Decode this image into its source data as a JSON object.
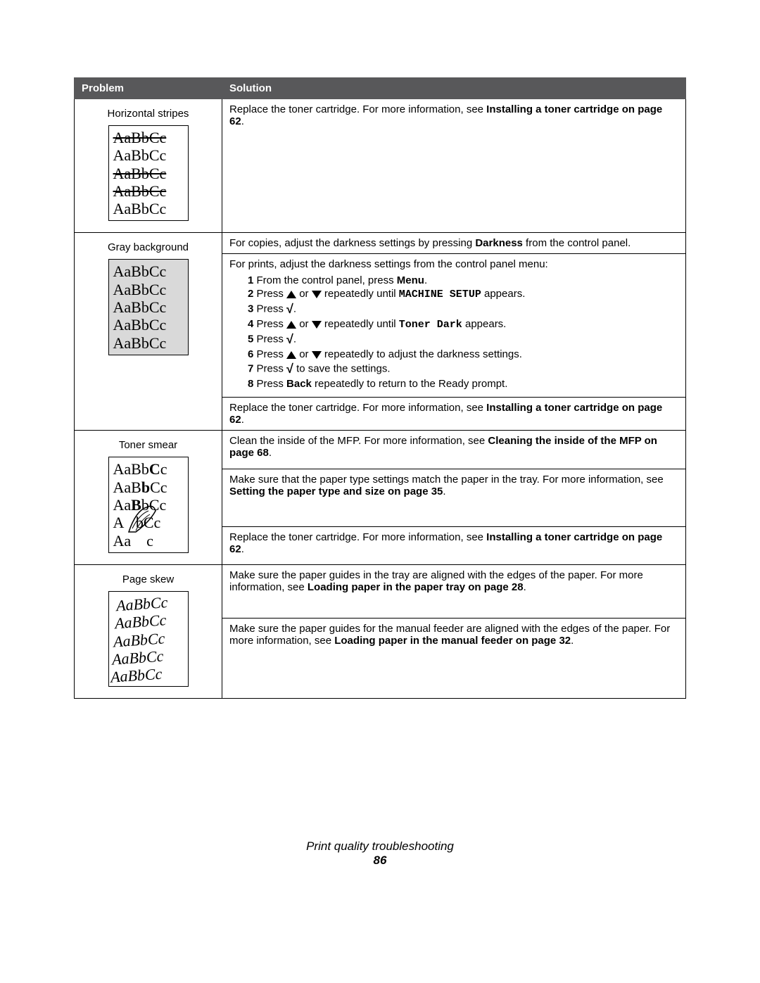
{
  "table": {
    "header": {
      "problem": "Problem",
      "solution": "Solution"
    },
    "rows": {
      "horizontal_stripes": {
        "label": "Horizontal stripes",
        "sample": [
          "AaBbCc",
          "AaBbCc",
          "AaBbCc",
          "AaBbCc",
          "AaBbCc"
        ],
        "solution_pre": "Replace the toner cartridge. For more information, see ",
        "solution_bold": "Installing a toner cartridge on page 62",
        "solution_post": "."
      },
      "gray_background": {
        "label": "Gray background",
        "sample": [
          "AaBbCc",
          "AaBbCc",
          "AaBbCc",
          "AaBbCc",
          "AaBbCc"
        ],
        "sol1_pre": "For copies, adjust the darkness settings by pressing ",
        "sol1_bold": "Darkness",
        "sol1_post": " from the control panel.",
        "sol2_intro": "For prints, adjust the darkness settings from the control panel menu:",
        "steps": {
          "s1a": "From the control panel, press ",
          "s1b": "Menu",
          "s1c": ".",
          "s2a": "Press ",
          "s2b": " or ",
          "s2c": " repeatedly until ",
          "s2d": "MACHINE SETUP",
          "s2e": " appears.",
          "s3a": "Press ",
          "s3b": ".",
          "s4a": "Press ",
          "s4b": " or ",
          "s4c": " repeatedly until ",
          "s4d": "Toner Dark",
          "s4e": " appears.",
          "s5a": "Press ",
          "s5b": ".",
          "s6a": "Press ",
          "s6b": " or ",
          "s6c": " repeatedly to adjust the darkness settings.",
          "s7a": "Press ",
          "s7b": " to save the settings.",
          "s8a": "Press ",
          "s8b": "Back",
          "s8c": " repeatedly to return to the Ready prompt."
        },
        "sol3_pre": "Replace the toner cartridge. For more information, see ",
        "sol3_bold": "Installing a toner cartridge on page 62",
        "sol3_post": "."
      },
      "toner_smear": {
        "label": "Toner smear",
        "sample": [
          "AaBbCc",
          "AaBbCc",
          "AaBbCc",
          "Aa   Cc",
          "Aa    c"
        ],
        "sol1_pre": "Clean the inside of the MFP. For more information, see ",
        "sol1_bold": "Cleaning the inside of the MFP on page 68",
        "sol1_post": ".",
        "sol2_pre": "Make sure that the paper type settings match the paper in the tray. For more information, see ",
        "sol2_bold": "Setting the paper type and size on page 35",
        "sol2_post": ".",
        "sol3_pre": "Replace the toner cartridge. For more information, see ",
        "sol3_bold": "Installing a toner cartridge on page 62",
        "sol3_post": "."
      },
      "page_skew": {
        "label": "Page skew",
        "sample": [
          "AaBbCc",
          "AaBbCc",
          "AaBbCc",
          "AaBbCc",
          "AaBbCc"
        ],
        "sol1_pre": "Make sure the paper guides in the tray are aligned with the edges of the paper. For more information, see ",
        "sol1_bold": "Loading paper in the paper tray on page 28",
        "sol1_post": ".",
        "sol2_pre": "Make sure the paper guides for the manual feeder are aligned with the edges of the paper. For more information, see ",
        "sol2_bold": "Loading paper in the manual feeder on page 32",
        "sol2_post": "."
      }
    }
  },
  "footer": {
    "title": "Print quality troubleshooting",
    "page": "86"
  },
  "style": {
    "header_bg": "#58585a",
    "header_fg": "#ffffff",
    "border": "#000000",
    "font_body": "Arial",
    "font_sample": "Times New Roman",
    "font_mono": "Courier New",
    "sample_gray_bg": "#d9d9d9"
  }
}
